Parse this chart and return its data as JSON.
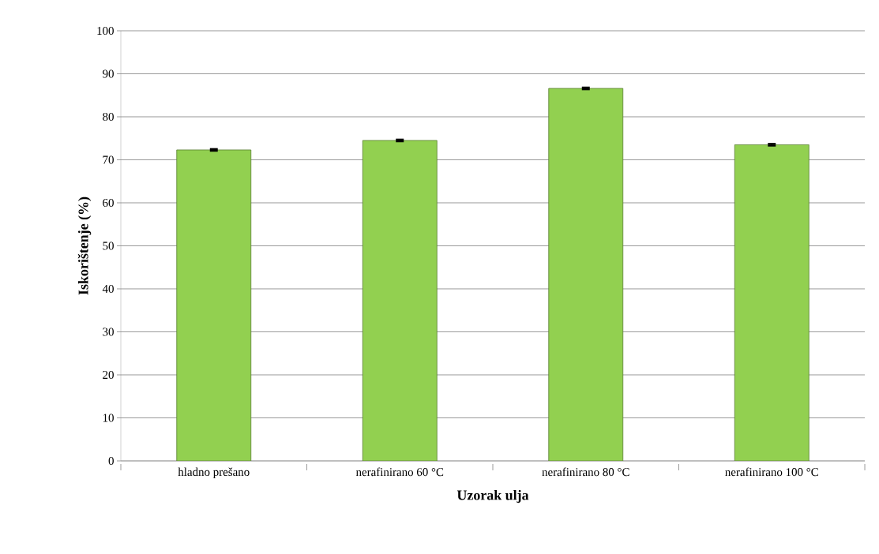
{
  "chart_data": {
    "type": "bar",
    "xlabel": "Uzorak ulja",
    "ylabel": "Iskorištenje (%)",
    "categories": [
      "hladno prešano",
      "nerafinirano 60 °C",
      "nerafinirano 80 °C",
      "nerafinirano 100 °C"
    ],
    "values": [
      72.3,
      74.5,
      86.6,
      73.5
    ],
    "errors": [
      0.2,
      0.2,
      0.2,
      0.2
    ],
    "color": "#92d050",
    "ylim": [
      0,
      100
    ],
    "yticks": [
      0,
      10,
      20,
      30,
      40,
      50,
      60,
      70,
      80,
      90,
      100
    ],
    "grid": "y"
  }
}
